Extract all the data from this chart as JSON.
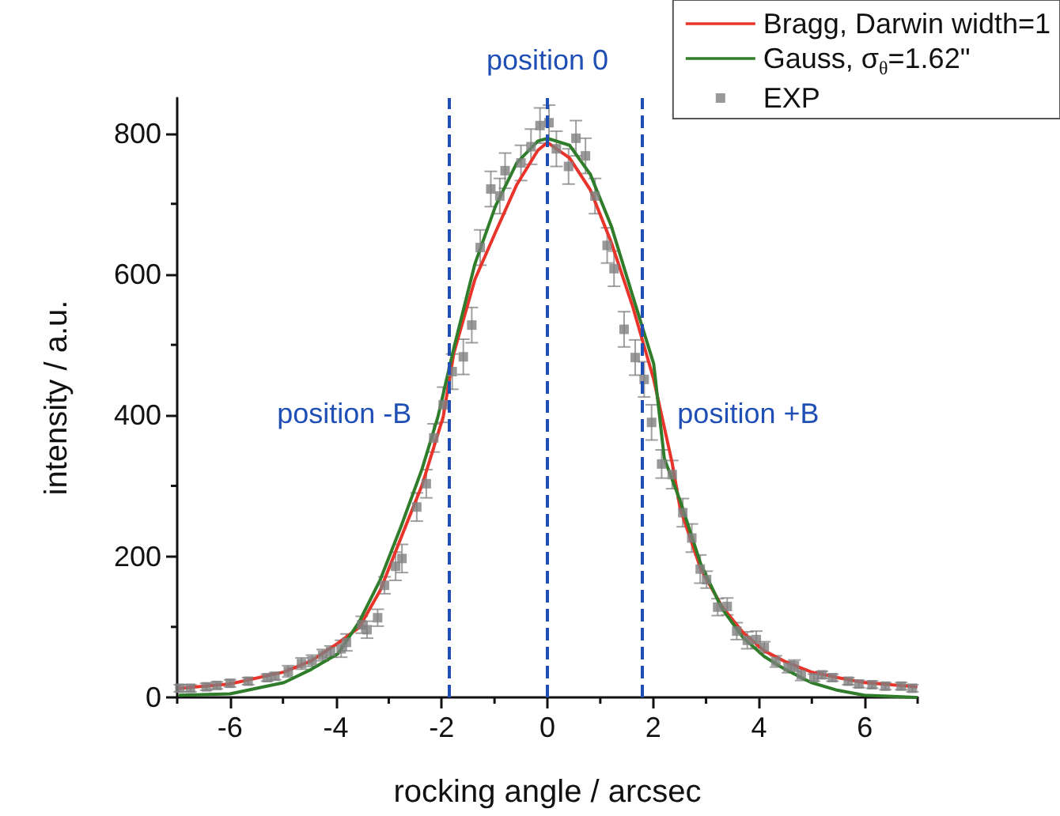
{
  "chart_data": {
    "type": "line",
    "xlabel": "rocking angle / arcsec",
    "ylabel": "intensity / a.u.",
    "xlim": [
      -7,
      7
    ],
    "xticks": [
      -6,
      -4,
      -2,
      0,
      2,
      4,
      6
    ],
    "ylim": [
      0,
      850
    ],
    "yticks": [
      0,
      200,
      400,
      600,
      800
    ],
    "grid": false,
    "legend": "top right",
    "series": [
      {
        "name": "Bragg, Darwin width=1",
        "color": "#e8342a",
        "marker": "none",
        "x": [
          -6.95,
          -6.0,
          -4.98,
          -4.46,
          -3.96,
          -3.56,
          -3.16,
          -2.77,
          -2.37,
          -1.97,
          -1.77,
          -1.37,
          -0.98,
          -0.58,
          -0.18,
          0.0,
          0.42,
          0.81,
          1.21,
          1.61,
          2.01,
          2.36,
          2.51,
          2.9,
          3.3,
          3.7,
          4.1,
          4.49,
          4.99,
          5.49,
          5.99,
          6.97
        ],
        "values": [
          13,
          19,
          36,
          52,
          77,
          99,
          152,
          226,
          301,
          398,
          488,
          593,
          660,
          727,
          776,
          787,
          765,
          720,
          645,
          555,
          451,
          332,
          268,
          182,
          129,
          92,
          66,
          51,
          36,
          28,
          21,
          15
        ]
      },
      {
        "name": "Gauss, σ$_{θ}$=1.62\"",
        "color": "#2f7d2a",
        "marker": "none",
        "x": [
          -6.95,
          -6.0,
          -4.98,
          -4.46,
          -3.96,
          -3.56,
          -3.16,
          -2.77,
          -2.37,
          -2.07,
          -1.77,
          -1.37,
          -0.98,
          -0.58,
          -0.18,
          0.0,
          0.42,
          0.81,
          1.21,
          1.61,
          2.01,
          2.21,
          2.51,
          2.9,
          3.3,
          3.7,
          4.1,
          4.49,
          4.99,
          5.49,
          5.99,
          6.97
        ],
        "values": [
          3,
          5,
          21,
          40,
          62,
          107,
          167,
          242,
          324,
          398,
          495,
          615,
          697,
          758,
          789,
          793,
          783,
          742,
          668,
          570,
          473,
          339,
          279,
          189,
          126,
          85,
          58,
          40,
          21,
          10,
          3,
          0
        ]
      },
      {
        "name": "EXP",
        "type": "scatter",
        "color": "#808080",
        "marker": "square",
        "x": [
          -6.95,
          -6.75,
          -6.45,
          -6.25,
          -6.0,
          -5.66,
          -5.3,
          -5.15,
          -4.9,
          -4.65,
          -4.45,
          -4.25,
          -4.1,
          -3.9,
          -3.8,
          -3.51,
          -3.41,
          -3.21,
          -3.08,
          -2.87,
          -2.75,
          -2.47,
          -2.29,
          -2.15,
          -1.97,
          -1.8,
          -1.59,
          -1.43,
          -1.27,
          -1.07,
          -0.9,
          -0.8,
          -0.5,
          -0.31,
          -0.14,
          0.03,
          0.17,
          0.4,
          0.54,
          0.72,
          0.9,
          1.13,
          1.26,
          1.45,
          1.66,
          1.83,
          1.97,
          2.16,
          2.36,
          2.56,
          2.73,
          2.89,
          3.01,
          3.22,
          3.4,
          3.58,
          3.78,
          3.95,
          4.1,
          4.32,
          4.55,
          4.67,
          4.8,
          5.04,
          5.19,
          5.39,
          5.69,
          5.89,
          6.14,
          6.39,
          6.69,
          6.9
        ],
        "values": [
          13,
          13,
          15,
          17,
          20,
          23,
          28,
          30,
          37,
          48,
          52,
          60,
          65,
          69,
          78,
          103,
          96,
          113,
          159,
          186,
          197,
          270,
          303,
          368,
          415,
          462,
          483,
          528,
          638,
          721,
          711,
          747,
          758,
          781,
          811,
          815,
          778,
          753,
          793,
          768,
          711,
          641,
          608,
          522,
          482,
          451,
          390,
          331,
          316,
          262,
          226,
          182,
          167,
          128,
          129,
          94,
          81,
          82,
          71,
          51,
          43,
          45,
          32,
          28,
          32,
          28,
          23,
          19,
          18,
          16,
          16,
          13
        ],
        "errors": [
          5,
          5,
          5,
          5,
          5,
          5,
          5,
          5,
          8,
          8,
          8,
          8,
          8,
          12,
          12,
          12,
          12,
          12,
          12,
          20,
          20,
          20,
          20,
          20,
          25,
          25,
          25,
          25,
          25,
          25,
          25,
          25,
          25,
          25,
          25,
          25,
          25,
          25,
          25,
          25,
          25,
          25,
          25,
          25,
          25,
          25,
          25,
          20,
          20,
          20,
          20,
          20,
          12,
          12,
          12,
          12,
          12,
          12,
          8,
          8,
          8,
          8,
          8,
          5,
          5,
          5,
          5,
          5,
          5,
          5,
          5,
          5
        ]
      }
    ],
    "ref_lines": [
      {
        "axis": "x",
        "value": -1.85,
        "label": "position -B",
        "color": "#1f4fb4",
        "line_style": "dashed"
      },
      {
        "axis": "x",
        "value": 0,
        "label": "position 0",
        "color": "#1f4fb4",
        "line_style": "dashed"
      },
      {
        "axis": "x",
        "value": 1.8,
        "label": "position +B",
        "color": "#1f4fb4",
        "line_style": "dashed"
      }
    ]
  }
}
